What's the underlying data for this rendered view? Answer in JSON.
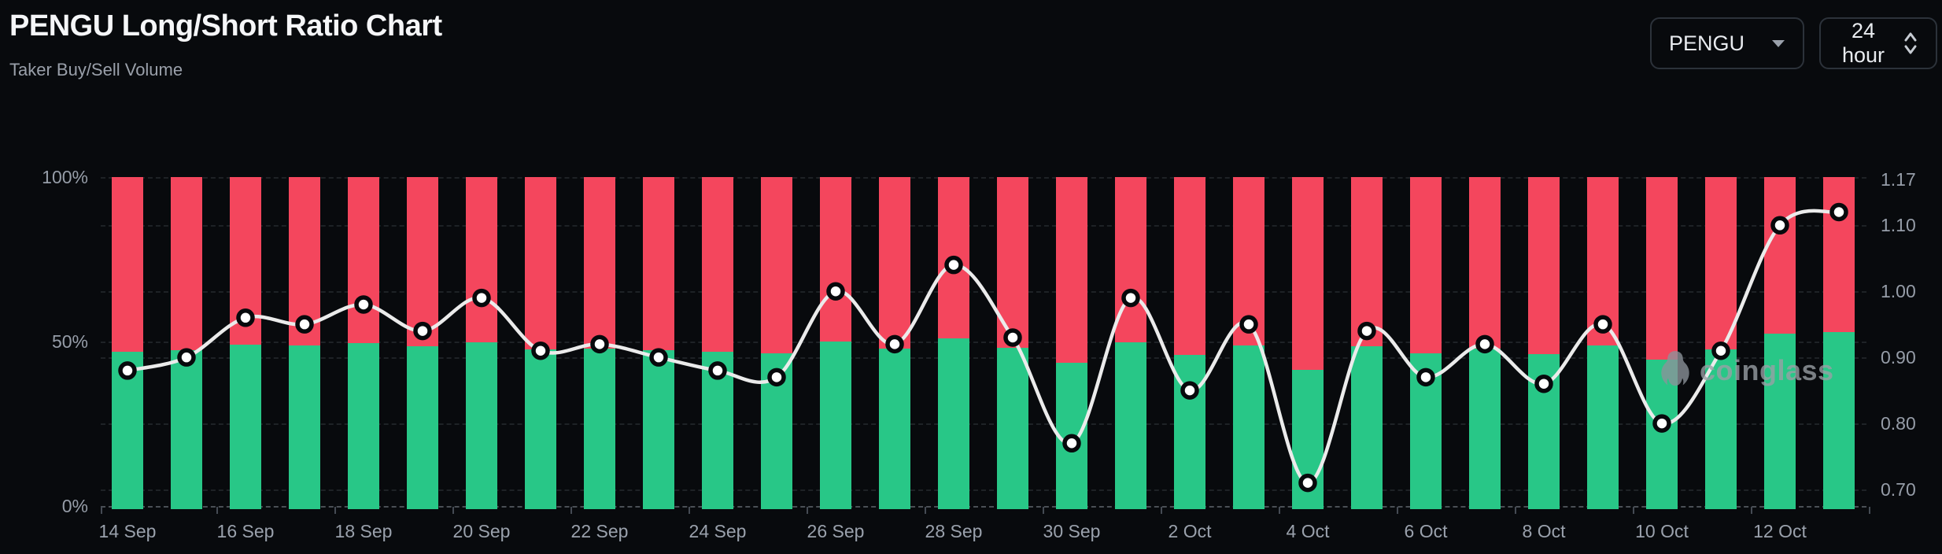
{
  "header": {
    "title": "PENGU Long/Short Ratio Chart",
    "subtitle": "Taker Buy/Sell Volume"
  },
  "controls": {
    "coin_select": {
      "label": "PENGU"
    },
    "interval_select": {
      "label": "24 hour"
    }
  },
  "watermark": {
    "brand": "coinglass"
  },
  "colors": {
    "background": "#080a0d",
    "buy_green": "#28c787",
    "sell_red": "#f4465d",
    "ratio_line": "#ebebeb",
    "axis_text": "#969da8"
  },
  "chart_data": {
    "type": "bar",
    "subtype": "stacked-percent-columns-with-ratio-line",
    "title": "PENGU Long/Short Ratio Chart",
    "subtitle": "Taker Buy/Sell Volume",
    "categories": [
      "14 Sep",
      "15 Sep",
      "16 Sep",
      "17 Sep",
      "18 Sep",
      "19 Sep",
      "20 Sep",
      "21 Sep",
      "22 Sep",
      "23 Sep",
      "24 Sep",
      "25 Sep",
      "26 Sep",
      "27 Sep",
      "28 Sep",
      "29 Sep",
      "30 Sep",
      "1 Oct",
      "2 Oct",
      "3 Oct",
      "4 Oct",
      "5 Oct",
      "6 Oct",
      "7 Oct",
      "8 Oct",
      "9 Oct",
      "10 Oct",
      "11 Oct",
      "12 Oct",
      "13 Oct"
    ],
    "series": [
      {
        "name": "Taker Buy %",
        "color": "#28c787",
        "values": [
          46.8,
          47.4,
          49.0,
          48.7,
          49.5,
          48.5,
          49.7,
          47.6,
          47.9,
          47.4,
          46.8,
          46.5,
          50.0,
          47.9,
          51.0,
          48.2,
          43.5,
          49.7,
          45.9,
          48.7,
          41.5,
          48.5,
          46.5,
          47.9,
          46.2,
          48.7,
          44.4,
          47.6,
          52.4,
          52.8
        ]
      },
      {
        "name": "Taker Sell %",
        "color": "#f4465d",
        "values": [
          53.2,
          52.6,
          51.0,
          51.3,
          50.5,
          51.5,
          50.3,
          52.4,
          52.1,
          52.6,
          53.2,
          53.5,
          50.0,
          52.1,
          49.0,
          51.8,
          56.5,
          50.3,
          54.1,
          51.3,
          58.5,
          51.5,
          53.5,
          52.1,
          53.8,
          51.3,
          55.6,
          52.4,
          47.6,
          47.2
        ]
      }
    ],
    "line_series": {
      "name": "Long/Short Ratio",
      "color": "#ebebeb",
      "values": [
        0.88,
        0.9,
        0.96,
        0.95,
        0.98,
        0.94,
        0.99,
        0.91,
        0.92,
        0.9,
        0.88,
        0.87,
        1.0,
        0.92,
        1.04,
        0.93,
        0.77,
        0.99,
        0.85,
        0.95,
        0.71,
        0.94,
        0.87,
        0.92,
        0.86,
        0.95,
        0.8,
        0.91,
        1.1,
        1.12
      ]
    },
    "left_axis": {
      "ticks": [
        "100%",
        "50%",
        "0%"
      ],
      "min": 0,
      "max": 100
    },
    "right_axis": {
      "ticks": [
        "1.17",
        "1.10",
        "1.00",
        "0.90",
        "0.80",
        "0.70"
      ],
      "min": 0.675,
      "max": 1.173
    },
    "x_axis": {
      "labels_every": 2,
      "first_label": "14 Sep",
      "last_label": "12 Oct"
    },
    "grid": "horizontal-dashed",
    "legend": "none",
    "stacked_to": 100
  }
}
